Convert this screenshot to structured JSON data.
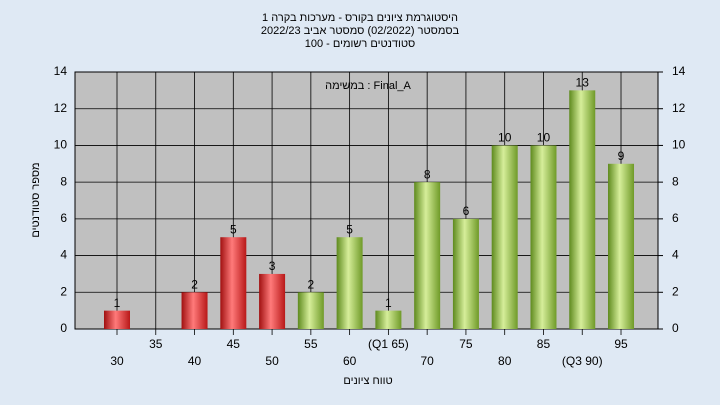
{
  "chart_data": {
    "type": "bar",
    "title": "היסטוגרמת ציונים בקורס - מערכות בקרה 1",
    "subtitle": "בסמסטר  (02/2022)  סמסטר אביב 2022/23",
    "subtitle2": "סטודנטים רשומים - 100",
    "annotation": "במשימה : Final_A",
    "ylabel": "מספר סטודנטים",
    "xlabel": "טווח ציונים",
    "categories": [
      "30",
      "35",
      "40",
      "45",
      "50",
      "55",
      "60",
      "(Q1 65)",
      "70",
      "75",
      "80",
      "85",
      "(Q3 90)",
      "95"
    ],
    "values": [
      1,
      null,
      2,
      5,
      3,
      2,
      5,
      1,
      8,
      6,
      10,
      10,
      13,
      9
    ],
    "colors": [
      "#d92b2b",
      "#d92b2b",
      "#d92b2b",
      "#d92b2b",
      "#d92b2b",
      "#8fba3c",
      "#8fba3c",
      "#8fba3c",
      "#8fba3c",
      "#8fba3c",
      "#8fba3c",
      "#8fba3c",
      "#8fba3c",
      "#8fba3c"
    ],
    "ylim": [
      0,
      14
    ],
    "yticks": [
      0,
      2,
      4,
      6,
      8,
      10,
      12,
      14
    ],
    "y2lim": [
      0,
      14
    ],
    "y2ticks": [
      0,
      2,
      4,
      6,
      8,
      10,
      12,
      14
    ],
    "grid": true
  }
}
